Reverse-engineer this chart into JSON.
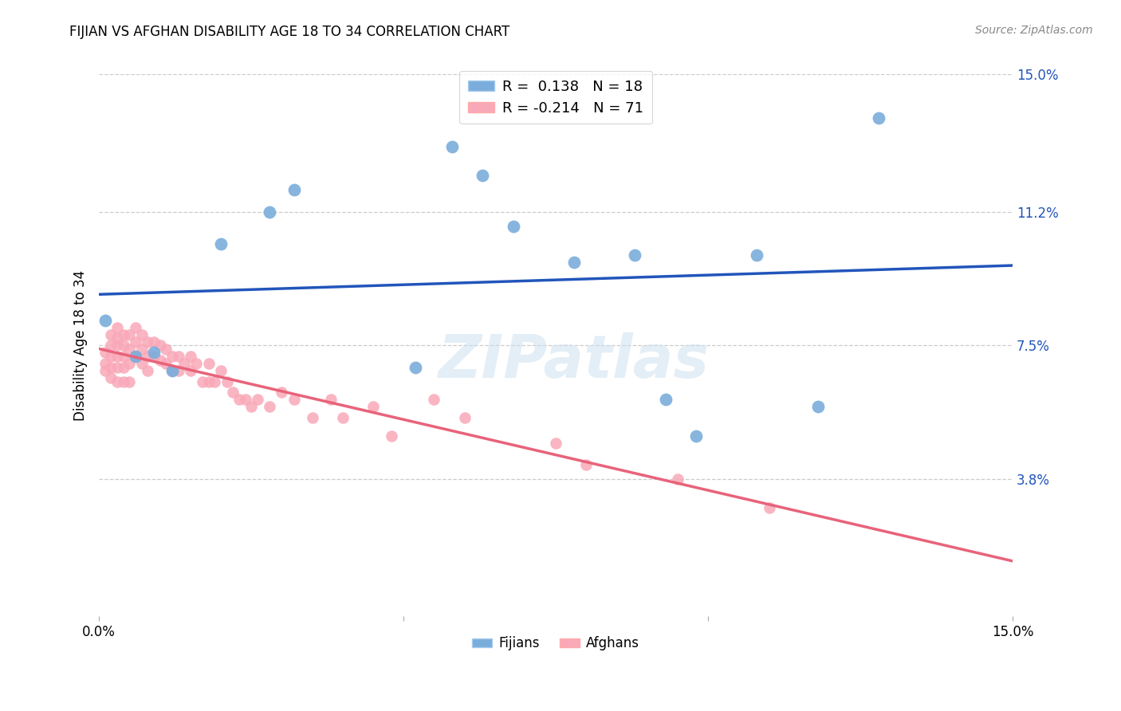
{
  "title": "FIJIAN VS AFGHAN DISABILITY AGE 18 TO 34 CORRELATION CHART",
  "source": "Source: ZipAtlas.com",
  "ylabel": "Disability Age 18 to 34",
  "xlim": [
    0.0,
    0.15
  ],
  "ylim": [
    0.0,
    0.15
  ],
  "ytick_labels_right": [
    "15.0%",
    "11.2%",
    "7.5%",
    "3.8%"
  ],
  "ytick_vals_right": [
    0.15,
    0.112,
    0.075,
    0.038
  ],
  "fijian_R": "0.138",
  "fijian_N": "18",
  "afghan_R": "-0.214",
  "afghan_N": "71",
  "fijian_color": "#7aaddb",
  "afghan_color": "#f9a8b8",
  "fijian_line_color": "#2255bb",
  "afghan_line_color": "#e8637a",
  "watermark": "ZIPatlas",
  "fijian_x": [
    0.001,
    0.006,
    0.009,
    0.012,
    0.02,
    0.028,
    0.032,
    0.052,
    0.058,
    0.063,
    0.068,
    0.078,
    0.088,
    0.093,
    0.098,
    0.108,
    0.118,
    0.128
  ],
  "fijian_y": [
    0.082,
    0.072,
    0.073,
    0.068,
    0.103,
    0.112,
    0.118,
    0.069,
    0.13,
    0.122,
    0.108,
    0.098,
    0.1,
    0.06,
    0.05,
    0.1,
    0.058,
    0.138
  ],
  "afghan_x": [
    0.001,
    0.001,
    0.001,
    0.002,
    0.002,
    0.002,
    0.002,
    0.002,
    0.003,
    0.003,
    0.003,
    0.003,
    0.003,
    0.003,
    0.004,
    0.004,
    0.004,
    0.004,
    0.004,
    0.005,
    0.005,
    0.005,
    0.005,
    0.006,
    0.006,
    0.006,
    0.007,
    0.007,
    0.007,
    0.008,
    0.008,
    0.008,
    0.009,
    0.009,
    0.01,
    0.01,
    0.011,
    0.011,
    0.012,
    0.012,
    0.013,
    0.013,
    0.014,
    0.015,
    0.015,
    0.016,
    0.017,
    0.018,
    0.018,
    0.019,
    0.02,
    0.021,
    0.022,
    0.023,
    0.024,
    0.025,
    0.026,
    0.028,
    0.03,
    0.032,
    0.035,
    0.038,
    0.04,
    0.045,
    0.048,
    0.055,
    0.06,
    0.075,
    0.08,
    0.095,
    0.11
  ],
  "afghan_y": [
    0.073,
    0.07,
    0.068,
    0.078,
    0.075,
    0.072,
    0.069,
    0.066,
    0.08,
    0.077,
    0.075,
    0.072,
    0.069,
    0.065,
    0.078,
    0.075,
    0.072,
    0.069,
    0.065,
    0.078,
    0.074,
    0.07,
    0.065,
    0.08,
    0.076,
    0.072,
    0.078,
    0.074,
    0.07,
    0.076,
    0.072,
    0.068,
    0.076,
    0.072,
    0.075,
    0.071,
    0.074,
    0.07,
    0.072,
    0.068,
    0.072,
    0.068,
    0.07,
    0.072,
    0.068,
    0.07,
    0.065,
    0.07,
    0.065,
    0.065,
    0.068,
    0.065,
    0.062,
    0.06,
    0.06,
    0.058,
    0.06,
    0.058,
    0.062,
    0.06,
    0.055,
    0.06,
    0.055,
    0.058,
    0.05,
    0.06,
    0.055,
    0.048,
    0.042,
    0.038,
    0.03
  ]
}
